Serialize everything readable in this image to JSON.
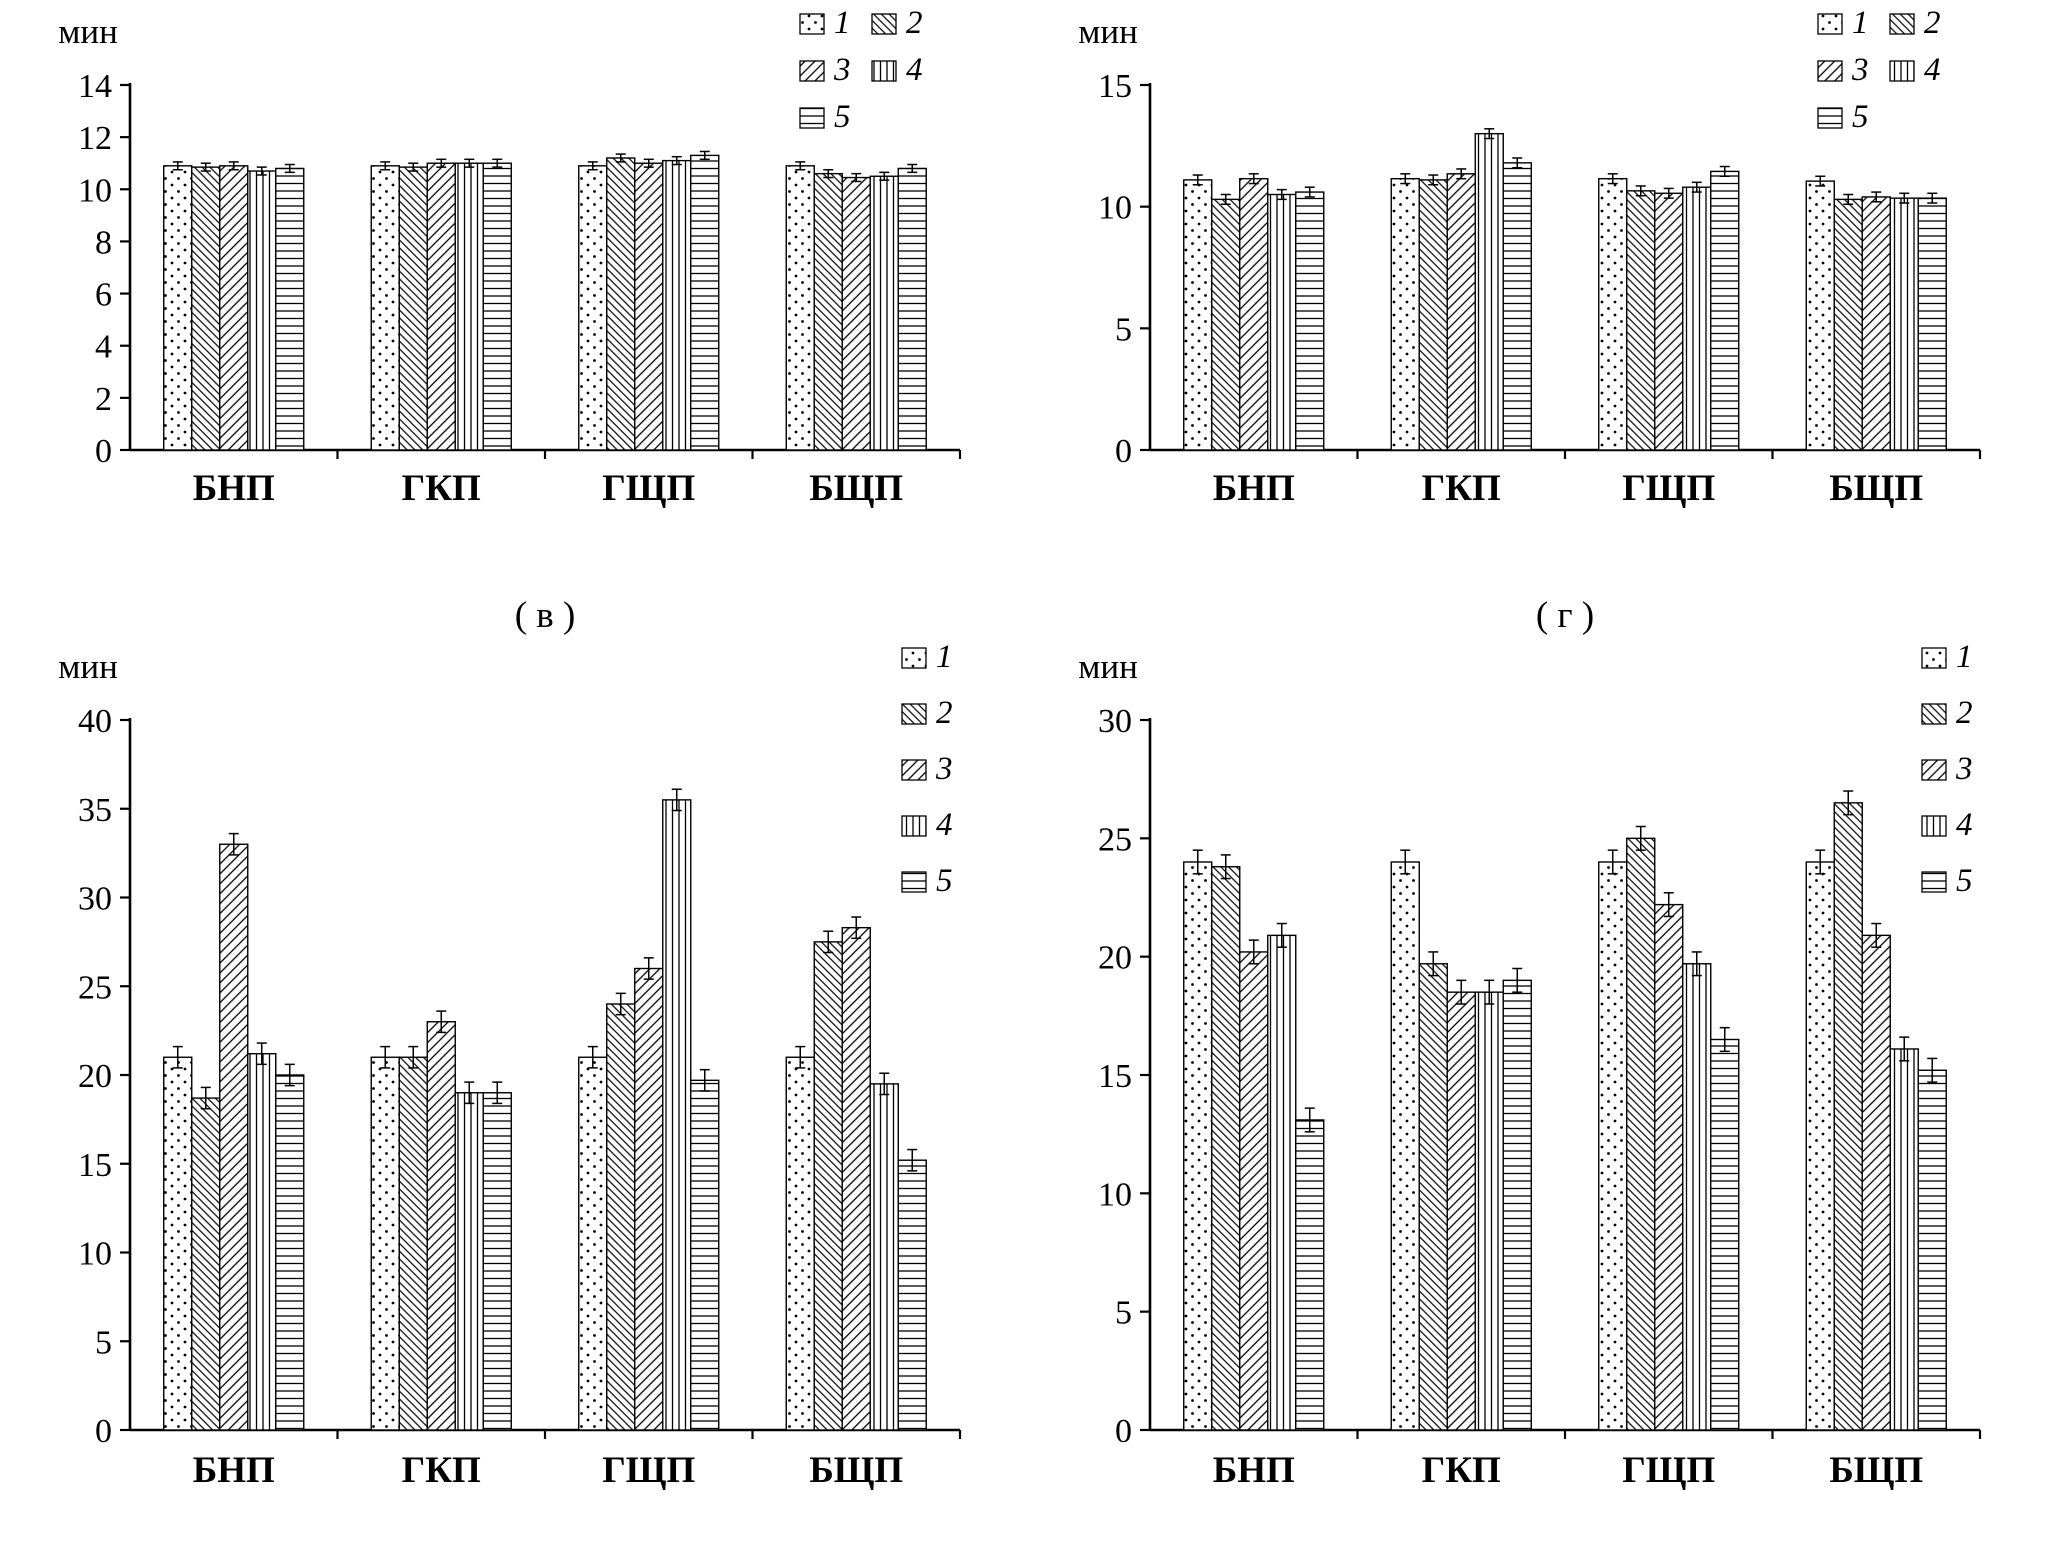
{
  "captions": {
    "v": "( в )",
    "g": "( г )"
  },
  "colors": {
    "foreground": "#000000",
    "background": "#ffffff"
  },
  "chart_data": [
    {
      "id": "a",
      "type": "bar",
      "ylabel": "мин",
      "ylim": [
        0,
        14
      ],
      "yticks": [
        0,
        2,
        4,
        6,
        8,
        10,
        12,
        14
      ],
      "categories": [
        "БНП",
        "ГКП",
        "ГЩП",
        "БЩП"
      ],
      "legend_position": "top-right-two-columns",
      "grid": false,
      "error_bar": 0.15,
      "series": [
        {
          "name": "1",
          "pattern": "dots",
          "values": [
            10.9,
            10.9,
            10.9,
            10.9
          ]
        },
        {
          "name": "2",
          "pattern": "diagonal-down",
          "values": [
            10.85,
            10.85,
            11.2,
            10.6
          ]
        },
        {
          "name": "3",
          "pattern": "diagonal-up",
          "values": [
            10.9,
            11.0,
            11.0,
            10.45
          ]
        },
        {
          "name": "4",
          "pattern": "vertical-lines",
          "values": [
            10.7,
            11.0,
            11.1,
            10.5
          ]
        },
        {
          "name": "5",
          "pattern": "horizontal-lines",
          "values": [
            10.8,
            11.0,
            11.3,
            10.8
          ]
        }
      ]
    },
    {
      "id": "b",
      "type": "bar",
      "ylabel": "мин",
      "ylim": [
        0,
        15
      ],
      "yticks": [
        0,
        5,
        10,
        15
      ],
      "categories": [
        "БНП",
        "ГКП",
        "ГЩП",
        "БЩП"
      ],
      "legend_position": "top-right-two-columns",
      "grid": false,
      "error_bar": 0.2,
      "series": [
        {
          "name": "1",
          "pattern": "dots",
          "values": [
            11.1,
            11.15,
            11.15,
            11.05
          ]
        },
        {
          "name": "2",
          "pattern": "diagonal-down",
          "values": [
            10.3,
            11.1,
            10.65,
            10.3
          ]
        },
        {
          "name": "3",
          "pattern": "diagonal-up",
          "values": [
            11.15,
            11.35,
            10.55,
            10.4
          ]
        },
        {
          "name": "4",
          "pattern": "vertical-lines",
          "values": [
            10.5,
            13.0,
            10.8,
            10.35
          ]
        },
        {
          "name": "5",
          "pattern": "horizontal-lines",
          "values": [
            10.6,
            11.8,
            11.45,
            10.35
          ]
        }
      ]
    },
    {
      "id": "v",
      "type": "bar",
      "caption": "( в )",
      "ylabel": "мин",
      "ylim": [
        0,
        40
      ],
      "yticks": [
        0,
        5,
        10,
        15,
        20,
        25,
        30,
        35,
        40
      ],
      "categories": [
        "БНП",
        "ГКП",
        "ГЩП",
        "БЩП"
      ],
      "legend_position": "right-single-column",
      "grid": false,
      "error_bar": 0.6,
      "series": [
        {
          "name": "1",
          "pattern": "dots",
          "values": [
            21.0,
            21.0,
            21.0,
            21.0
          ]
        },
        {
          "name": "2",
          "pattern": "diagonal-down",
          "values": [
            18.7,
            21.0,
            24.0,
            27.5
          ]
        },
        {
          "name": "3",
          "pattern": "diagonal-up",
          "values": [
            33.0,
            23.0,
            26.0,
            28.3
          ]
        },
        {
          "name": "4",
          "pattern": "vertical-lines",
          "values": [
            21.2,
            19.0,
            35.5,
            19.5
          ]
        },
        {
          "name": "5",
          "pattern": "horizontal-lines",
          "values": [
            20.0,
            19.0,
            19.7,
            15.2
          ]
        }
      ]
    },
    {
      "id": "g",
      "type": "bar",
      "caption": "( г )",
      "ylabel": "мин",
      "ylim": [
        0,
        30
      ],
      "yticks": [
        0,
        5,
        10,
        15,
        20,
        25,
        30
      ],
      "categories": [
        "БНП",
        "ГКП",
        "ГЩП",
        "БЩП"
      ],
      "legend_position": "right-single-column",
      "grid": false,
      "error_bar": 0.5,
      "series": [
        {
          "name": "1",
          "pattern": "dots",
          "values": [
            24.0,
            24.0,
            24.0,
            24.0
          ]
        },
        {
          "name": "2",
          "pattern": "diagonal-down",
          "values": [
            23.8,
            19.7,
            25.0,
            26.5
          ]
        },
        {
          "name": "3",
          "pattern": "diagonal-up",
          "values": [
            20.2,
            18.5,
            22.2,
            20.9
          ]
        },
        {
          "name": "4",
          "pattern": "vertical-lines",
          "values": [
            20.9,
            18.5,
            19.7,
            16.1
          ]
        },
        {
          "name": "5",
          "pattern": "horizontal-lines",
          "values": [
            13.1,
            19.0,
            16.5,
            15.2
          ]
        }
      ]
    }
  ]
}
